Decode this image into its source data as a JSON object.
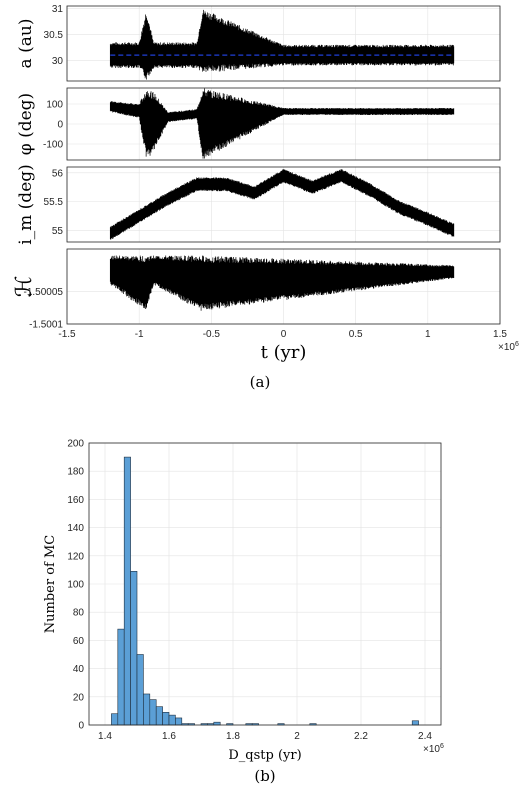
{
  "chart_data": [
    {
      "type": "line",
      "panel": "a-top",
      "ylabel": "a (au)",
      "ylim": [
        29.6,
        31.05
      ],
      "yticks": [
        30,
        30.5,
        31
      ],
      "ytick_labels": [
        "30",
        "30.5",
        "31"
      ],
      "xlim": [
        -1500000,
        1500000
      ],
      "data_range_x": [
        -1200000,
        1180000
      ],
      "series": [
        {
          "color": "#000000",
          "x": [
            -1200000,
            -1000000,
            -950000,
            -900000,
            -600000,
            -560000,
            0,
            600000,
            1180000
          ],
          "y_min": [
            29.85,
            29.85,
            29.6,
            29.85,
            29.85,
            29.75,
            29.9,
            29.9,
            29.9
          ],
          "y_max": [
            30.35,
            30.35,
            31.0,
            30.35,
            30.35,
            31.0,
            30.3,
            30.3,
            30.3
          ]
        },
        {
          "color": "#1f3fd8",
          "style": "dashed",
          "x": [
            -1200000,
            1180000
          ],
          "y": [
            30.1,
            30.1
          ]
        }
      ]
    },
    {
      "type": "line",
      "panel": "a-phi",
      "ylabel": "φ (deg)",
      "ylim": [
        -180,
        180
      ],
      "yticks": [
        -100,
        0,
        100
      ],
      "ytick_labels": [
        "-100",
        "0",
        "100"
      ],
      "xlim": [
        -1500000,
        1500000
      ],
      "series": [
        {
          "color": "#000000",
          "x": [
            -1200000,
            -1000000,
            -950000,
            -900000,
            -800000,
            -600000,
            -560000,
            0,
            1180000
          ],
          "y_min": [
            60,
            30,
            -180,
            -140,
            10,
            25,
            -180,
            45,
            45
          ],
          "y_max": [
            115,
            100,
            180,
            160,
            60,
            75,
            180,
            80,
            80
          ]
        }
      ]
    },
    {
      "type": "line",
      "panel": "a-im",
      "ylabel": "i_m (deg)",
      "ylim": [
        54.8,
        56.1
      ],
      "yticks": [
        55,
        55.5,
        56
      ],
      "ytick_labels": [
        "55",
        "55.5",
        "56"
      ],
      "xlim": [
        -1500000,
        1500000
      ],
      "series": [
        {
          "color": "#000000",
          "x": [
            -1200000,
            -1000000,
            -800000,
            -600000,
            -400000,
            -200000,
            0,
            200000,
            400000,
            600000,
            800000,
            1000000,
            1180000
          ],
          "y_center": [
            54.95,
            55.25,
            55.55,
            55.8,
            55.8,
            55.65,
            55.95,
            55.75,
            55.95,
            55.7,
            55.4,
            55.2,
            55.0
          ],
          "band": 0.12
        }
      ]
    },
    {
      "type": "line",
      "panel": "a-H",
      "ylabel": "ℋ",
      "ylim": [
        -1.5001,
        -1.499985
      ],
      "yticks": [
        -1.5001,
        -1.50005
      ],
      "ytick_labels": [
        "-1.5001",
        "-1.50005"
      ],
      "xlim": [
        -1500000,
        1500000
      ],
      "xticks": [
        -1500000,
        -1000000,
        -500000,
        0,
        500000,
        1000000,
        1500000
      ],
      "xtick_labels": [
        "-1.5",
        "-1",
        "-0.5",
        "0",
        "0.5",
        "1",
        "1.5"
      ],
      "xlabel": "t (yr)",
      "x_multiplier": "×10",
      "x_multiplier_exp": "6",
      "series": [
        {
          "color": "#000000",
          "x": [
            -1200000,
            -950000,
            -900000,
            -570000,
            1180000
          ],
          "y_min": [
            -1.50004,
            -1.50008,
            -1.50004,
            -1.50008,
            -1.50003
          ],
          "y_max": [
            -1.499995,
            -1.499995,
            -1.499995,
            -1.499995,
            -1.50001
          ]
        }
      ]
    },
    {
      "type": "bar",
      "panel": "b",
      "xlabel": "D_qstp (yr)",
      "ylabel": "Number of MC",
      "xlim": [
        1350000,
        2450000
      ],
      "ylim": [
        0,
        200
      ],
      "xticks": [
        1400000,
        1600000,
        1800000,
        2000000,
        2200000,
        2400000
      ],
      "xtick_labels": [
        "1.4",
        "1.6",
        "1.8",
        "2",
        "2.2",
        "2.4"
      ],
      "yticks": [
        0,
        20,
        40,
        60,
        80,
        100,
        120,
        140,
        160,
        180,
        200
      ],
      "ytick_labels": [
        "0",
        "20",
        "40",
        "60",
        "80",
        "100",
        "120",
        "140",
        "160",
        "180",
        "200"
      ],
      "x_multiplier": "×10",
      "x_multiplier_exp": "6",
      "bar_color": "#5b9fd6",
      "bin_width": 20000,
      "bin_starts": [
        1420000,
        1440000,
        1460000,
        1480000,
        1500000,
        1520000,
        1540000,
        1560000,
        1580000,
        1600000,
        1620000,
        1640000,
        1660000,
        1680000,
        1700000,
        1720000,
        1740000,
        1760000,
        1780000,
        1800000,
        1820000,
        1840000,
        1860000,
        1880000,
        1900000,
        1920000,
        1940000,
        1960000,
        1980000,
        2000000,
        2020000,
        2040000,
        2360000
      ],
      "values": [
        8,
        68,
        190,
        109,
        50,
        22,
        18,
        13,
        9,
        7,
        5,
        1,
        1,
        0,
        1,
        1,
        2,
        0,
        1,
        0,
        0,
        1,
        1,
        0,
        0,
        0,
        1,
        0,
        0,
        0,
        0,
        1,
        3
      ]
    }
  ],
  "captions": {
    "a": "(a)",
    "b": "(b)"
  }
}
